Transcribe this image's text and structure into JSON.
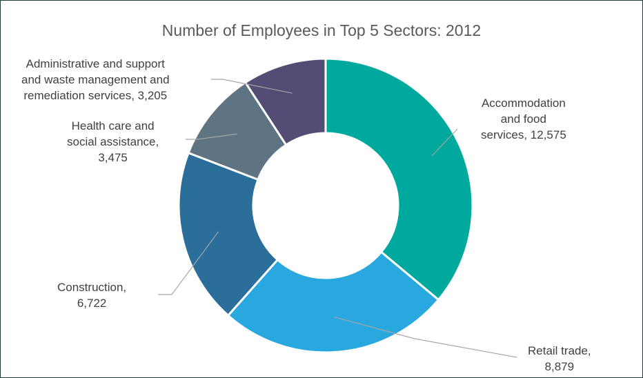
{
  "chart_data": {
    "type": "pie",
    "title": "Number of Employees in Top 5 Sectors: 2012",
    "slices": [
      {
        "label_lines": [
          "Accommodation",
          "and food",
          "services, 12,575"
        ],
        "name": "Accommodation and food services",
        "value": 12575,
        "color": "#00A99D"
      },
      {
        "label_lines": [
          "Retail trade,",
          "8,879"
        ],
        "name": "Retail trade",
        "value": 8879,
        "color": "#29A8E0"
      },
      {
        "label_lines": [
          "Construction,",
          "6,722"
        ],
        "name": "Construction",
        "value": 6722,
        "color": "#2A6E99"
      },
      {
        "label_lines": [
          "Health care and",
          "social assistance,",
          "3,475"
        ],
        "name": "Health care and social assistance",
        "value": 3475,
        "color": "#5F7482"
      },
      {
        "label_lines": [
          "Administrative and support",
          "and waste management and",
          "remediation services, 3,205"
        ],
        "name": "Administrative and support and waste management and remediation services",
        "value": 3205,
        "color": "#544C74"
      }
    ]
  }
}
